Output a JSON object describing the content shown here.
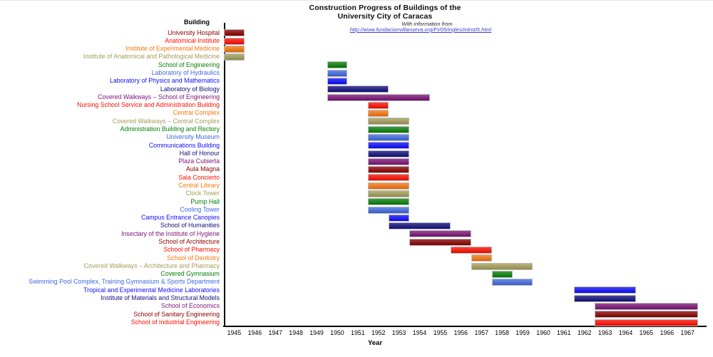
{
  "chart_data": {
    "type": "bar",
    "orientation": "horizontal",
    "title_line1": "Construction Progress of Buildings of the",
    "title_line2": "University City of Caracas",
    "subtitle": "With information from",
    "source_url": "http://www.fundacionvillanueva.org/FV05/ingles/intro05.html",
    "ylabel_header": "Building",
    "xlabel": "Year",
    "x_min": 1944.5,
    "x_max": 1967.5,
    "grid": false,
    "x_ticks": [
      "1945",
      "1946",
      "1947",
      "1948",
      "1949",
      "1950",
      "1951",
      "1952",
      "1953",
      "1954",
      "1955",
      "1956",
      "1957",
      "1958",
      "1959",
      "1960",
      "1961",
      "1962",
      "1963",
      "1964",
      "1965",
      "1966",
      "1967"
    ],
    "palette": {
      "darkred": "#8B0000",
      "red": "#FF0D00",
      "orange": "#F9760D",
      "darkkhaki": "#A49D58",
      "green": "#078007",
      "royalblue": "#3E69E1",
      "blue": "#0D0DFF",
      "navy": "#10107E",
      "purple": "#7C1378"
    },
    "rows": [
      {
        "label": "University Hospital",
        "color": "darkred",
        "start": 1945,
        "end": 1945
      },
      {
        "label": "Anatomical Institute",
        "color": "red",
        "start": 1945,
        "end": 1945
      },
      {
        "label": "Institute of Experimental Medicine",
        "color": "orange",
        "start": 1945,
        "end": 1945
      },
      {
        "label": "Institute of Anatomical and Pathological Medicine",
        "color": "darkkhaki",
        "start": 1945,
        "end": 1945
      },
      {
        "label": "School of Engineering",
        "color": "green",
        "start": 1950,
        "end": 1950
      },
      {
        "label": "Laboratory of Hydraulics",
        "color": "royalblue",
        "start": 1950,
        "end": 1950
      },
      {
        "label": "Laboratory of Physics and Mathematics",
        "color": "blue",
        "start": 1950,
        "end": 1950
      },
      {
        "label": "Laboratory of Biology",
        "color": "navy",
        "start": 1950,
        "end": 1952
      },
      {
        "label": "Covered Walkways – School of Engineering",
        "color": "purple",
        "start": 1950,
        "end": 1954
      },
      {
        "label": "Nursing School Service and Administration Building",
        "color": "red",
        "start": 1952,
        "end": 1952
      },
      {
        "label": "Central Complex",
        "color": "orange",
        "start": 1952,
        "end": 1952
      },
      {
        "label": "Covered Walkways – Central Complex",
        "color": "darkkhaki",
        "start": 1952,
        "end": 1953
      },
      {
        "label": "Administration Building and Rectory",
        "color": "green",
        "start": 1952,
        "end": 1953
      },
      {
        "label": "University Museum",
        "color": "royalblue",
        "start": 1952,
        "end": 1953
      },
      {
        "label": "Communications Building",
        "color": "blue",
        "start": 1952,
        "end": 1953
      },
      {
        "label": "Hall of Honour",
        "color": "navy",
        "start": 1952,
        "end": 1953
      },
      {
        "label": "Plaza Cubierta",
        "color": "purple",
        "start": 1952,
        "end": 1953
      },
      {
        "label": "Aula Magna",
        "color": "darkred",
        "start": 1952,
        "end": 1953
      },
      {
        "label": "Sala Concierto",
        "color": "red",
        "start": 1952,
        "end": 1953
      },
      {
        "label": "Central Library",
        "color": "orange",
        "start": 1952,
        "end": 1953
      },
      {
        "label": "Clock Tower",
        "color": "darkkhaki",
        "start": 1952,
        "end": 1953
      },
      {
        "label": "Pump Hall",
        "color": "green",
        "start": 1952,
        "end": 1953
      },
      {
        "label": "Cooling Tower",
        "color": "royalblue",
        "start": 1952,
        "end": 1953
      },
      {
        "label": "Campus Entrance Canopies",
        "color": "blue",
        "start": 1953,
        "end": 1953
      },
      {
        "label": "School of Humanities",
        "color": "navy",
        "start": 1953,
        "end": 1955
      },
      {
        "label": "Insectary of the Institute of Hygiene",
        "color": "purple",
        "start": 1954,
        "end": 1956
      },
      {
        "label": "School of Architecture",
        "color": "darkred",
        "start": 1954,
        "end": 1956
      },
      {
        "label": "School of Pharmacy",
        "color": "red",
        "start": 1956,
        "end": 1957
      },
      {
        "label": "School of Dentistry",
        "color": "orange",
        "start": 1957,
        "end": 1957
      },
      {
        "label": "Covered Walkways – Architecture and Pharmacy",
        "color": "darkkhaki",
        "start": 1957,
        "end": 1959
      },
      {
        "label": "Covered Gymnasium",
        "color": "green",
        "start": 1958,
        "end": 1958
      },
      {
        "label": "Swimming Pool Complex, Training Gymnasium & Sports Department",
        "color": "royalblue",
        "start": 1958,
        "end": 1959
      },
      {
        "label": "Tropical and Experimental Medicine Laboratories",
        "color": "blue",
        "start": 1962,
        "end": 1964
      },
      {
        "label": "Institute of Materials and Structural Models",
        "color": "navy",
        "start": 1962,
        "end": 1964
      },
      {
        "label": "School of Economics",
        "color": "purple",
        "start": 1963,
        "end": 1967
      },
      {
        "label": "School of Sanitary Engineering",
        "color": "darkred",
        "start": 1963,
        "end": 1967
      },
      {
        "label": "School of Industrial Engineering",
        "color": "red",
        "start": 1963,
        "end": 1967
      }
    ]
  }
}
